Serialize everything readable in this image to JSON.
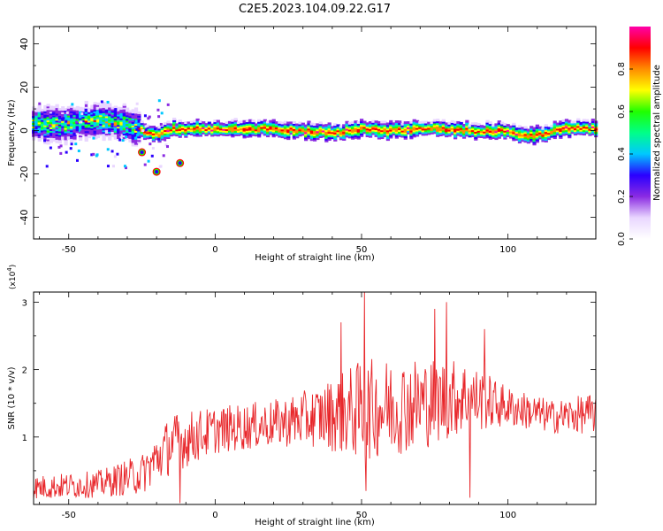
{
  "title": "C2E5.2023.104.09.22.G17",
  "colors": {
    "snr_line": "#e8262a",
    "colormap": [
      "#ffffff",
      "#e9d6ff",
      "#8a2be2",
      "#2a00ff",
      "#00c8ff",
      "#00ff88",
      "#20ff00",
      "#ffff00",
      "#ff8c00",
      "#ff0000",
      "#ff00aa"
    ]
  },
  "chart_data": [
    {
      "type": "heatmap",
      "xlabel": "Height of straight line (km)",
      "ylabel": "Frequency (Hz)",
      "xlim": [
        -62,
        130
      ],
      "ylim": [
        -50,
        48
      ],
      "xticks": [
        -50,
        0,
        50,
        100
      ],
      "yticks": [
        -40,
        -20,
        0,
        20,
        40
      ],
      "colorbar": {
        "label": "Normalized spectral amplitude",
        "range": [
          0.0,
          1.0
        ],
        "ticks": [
          "0.0",
          "0.2",
          "0.4",
          "0.6",
          "0.8"
        ]
      },
      "ridge_center_hz": [
        {
          "x": -60,
          "y": 3
        },
        {
          "x": -50,
          "y": 3
        },
        {
          "x": -40,
          "y": 5
        },
        {
          "x": -30,
          "y": 3
        },
        {
          "x": -25,
          "y": 0
        },
        {
          "x": -20,
          "y": -2
        },
        {
          "x": -15,
          "y": 1
        },
        {
          "x": -10,
          "y": 1
        },
        {
          "x": 0,
          "y": 1
        },
        {
          "x": 10,
          "y": 1
        },
        {
          "x": 20,
          "y": 1
        },
        {
          "x": 30,
          "y": 0
        },
        {
          "x": 40,
          "y": -1
        },
        {
          "x": 50,
          "y": 1
        },
        {
          "x": 60,
          "y": 0
        },
        {
          "x": 70,
          "y": 1
        },
        {
          "x": 80,
          "y": 1
        },
        {
          "x": 90,
          "y": 0
        },
        {
          "x": 100,
          "y": 0
        },
        {
          "x": 105,
          "y": -2
        },
        {
          "x": 110,
          "y": -2
        },
        {
          "x": 120,
          "y": 1
        },
        {
          "x": 130,
          "y": 1
        }
      ],
      "side_branch_hz": [
        {
          "x": -25,
          "y": -10
        },
        {
          "x": -20,
          "y": -19
        },
        {
          "x": -12,
          "y": -15
        }
      ]
    },
    {
      "type": "line",
      "xlabel": "Height of straight line (km)",
      "ylabel": "SNR (10 * v/v)",
      "yscale_note": "(x10",
      "yscale_exp": "4",
      "yscale_close": ")",
      "xlim": [
        -62,
        130
      ],
      "ylim": [
        0,
        3.15
      ],
      "xticks": [
        -50,
        0,
        50,
        100
      ],
      "yticks": [
        1,
        2,
        3
      ],
      "series": [
        {
          "envelope": [
            {
              "x": -62,
              "mean": 0.25,
              "amp": 0.18
            },
            {
              "x": -40,
              "mean": 0.3,
              "amp": 0.2
            },
            {
              "x": -25,
              "mean": 0.45,
              "amp": 0.3
            },
            {
              "x": -15,
              "mean": 0.9,
              "amp": 0.45
            },
            {
              "x": 0,
              "mean": 1.1,
              "amp": 0.35
            },
            {
              "x": 20,
              "mean": 1.2,
              "amp": 0.35
            },
            {
              "x": 35,
              "mean": 1.3,
              "amp": 0.45
            },
            {
              "x": 50,
              "mean": 1.4,
              "amp": 0.75
            },
            {
              "x": 70,
              "mean": 1.5,
              "amp": 0.7
            },
            {
              "x": 85,
              "mean": 1.6,
              "amp": 0.55
            },
            {
              "x": 100,
              "mean": 1.45,
              "amp": 0.3
            },
            {
              "x": 115,
              "mean": 1.3,
              "amp": 0.25
            },
            {
              "x": 130,
              "mean": 1.35,
              "amp": 0.3
            }
          ],
          "peaks": [
            {
              "x": -12,
              "y": 0.02
            },
            {
              "x": 43,
              "y": 2.7
            },
            {
              "x": 51,
              "y": 3.15
            },
            {
              "x": 51.5,
              "y": 0.2
            },
            {
              "x": 75,
              "y": 2.9
            },
            {
              "x": 79,
              "y": 3.0
            },
            {
              "x": 92,
              "y": 2.6
            },
            {
              "x": 87,
              "y": 0.1
            }
          ]
        }
      ]
    }
  ]
}
